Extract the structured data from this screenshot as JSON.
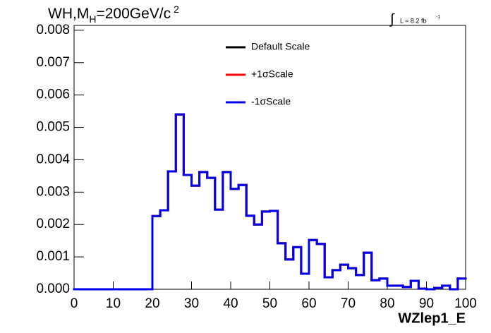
{
  "chart_data": {
    "type": "histogram",
    "title": {
      "main": "WH,M",
      "sub": "H",
      "rest": "=200GeV/c",
      "sup": "2"
    },
    "lumi": {
      "integral": "∫",
      "text": "L = 8.2 fb",
      "exp": "-1"
    },
    "x_label": "WZlep1_E",
    "bins": [
      0,
      2,
      4,
      6,
      8,
      10,
      12,
      14,
      16,
      18,
      20,
      22,
      24,
      26,
      28,
      30,
      32,
      34,
      36,
      38,
      40,
      42,
      44,
      46,
      48,
      50,
      52,
      54,
      56,
      58,
      60,
      62,
      64,
      66,
      68,
      70,
      72,
      74,
      76,
      78,
      80,
      82,
      84,
      86,
      88,
      90,
      92,
      94,
      96,
      98,
      100
    ],
    "series": [
      {
        "name": "Default Scale",
        "color": "#000000",
        "values": [
          0,
          0,
          0,
          0,
          0,
          0,
          0,
          0,
          0,
          0,
          0.00226,
          0.00244,
          0.00364,
          0.0054,
          0.00353,
          0.0032,
          0.00362,
          0.00344,
          0.00246,
          0.00362,
          0.0031,
          0.00322,
          0.00227,
          0.002,
          0.0024,
          0.00242,
          0.00142,
          0.00092,
          0.0013,
          0.00048,
          0.00152,
          0.0014,
          0.00037,
          0.00059,
          0.00076,
          0.00065,
          0.00044,
          0.00113,
          0.00028,
          0.00033,
          0.00011,
          0.00011,
          7e-05,
          0.00026,
          2e-05,
          0,
          4e-05,
          0.00011,
          0,
          0.00033
        ]
      },
      {
        "name": "+1σScale",
        "color": "#ff0000",
        "values": [
          0,
          0,
          0,
          0,
          0,
          0,
          0,
          0,
          0,
          0,
          0.00226,
          0.00244,
          0.00364,
          0.0054,
          0.00353,
          0.0032,
          0.00362,
          0.00344,
          0.00246,
          0.00362,
          0.0031,
          0.00322,
          0.00227,
          0.002,
          0.0024,
          0.00242,
          0.00142,
          0.00092,
          0.0013,
          0.00048,
          0.00152,
          0.0014,
          0.00037,
          0.00059,
          0.00076,
          0.00065,
          0.00044,
          0.00113,
          0.00028,
          0.00033,
          0.00011,
          0.00011,
          7e-05,
          0.00026,
          2e-05,
          0,
          4e-05,
          0.00011,
          0,
          0.00033
        ]
      },
      {
        "name": "-1σScale",
        "color": "#0000ee",
        "values": [
          0,
          0,
          0,
          0,
          0,
          0,
          0,
          0,
          0,
          0,
          0.00226,
          0.00244,
          0.00364,
          0.0054,
          0.00353,
          0.0032,
          0.00362,
          0.00344,
          0.00246,
          0.00362,
          0.0031,
          0.00322,
          0.00227,
          0.002,
          0.0024,
          0.00242,
          0.00142,
          0.00092,
          0.0013,
          0.00048,
          0.00152,
          0.0014,
          0.00037,
          0.00059,
          0.00076,
          0.00065,
          0.00044,
          0.00113,
          0.00028,
          0.00033,
          0.00011,
          0.00011,
          7e-05,
          0.00026,
          2e-05,
          0,
          4e-05,
          0.00011,
          0,
          0.00033
        ]
      }
    ],
    "xlim": [
      0,
      100
    ],
    "xticks": [
      0,
      10,
      20,
      30,
      40,
      50,
      60,
      70,
      80,
      90,
      100
    ],
    "ylim": [
      0,
      0.00815
    ],
    "yticks": [
      {
        "value": 0,
        "label": "0.000"
      },
      {
        "value": 0.001,
        "label": "0.001"
      },
      {
        "value": 0.002,
        "label": "0.002"
      },
      {
        "value": 0.003,
        "label": "0.003"
      },
      {
        "value": 0.004,
        "label": "0.004"
      },
      {
        "value": 0.005,
        "label": "0.005"
      },
      {
        "value": 0.006,
        "label": "0.006"
      },
      {
        "value": 0.007,
        "label": "0.007"
      },
      {
        "value": 0.008,
        "label": "0.008"
      }
    ]
  }
}
